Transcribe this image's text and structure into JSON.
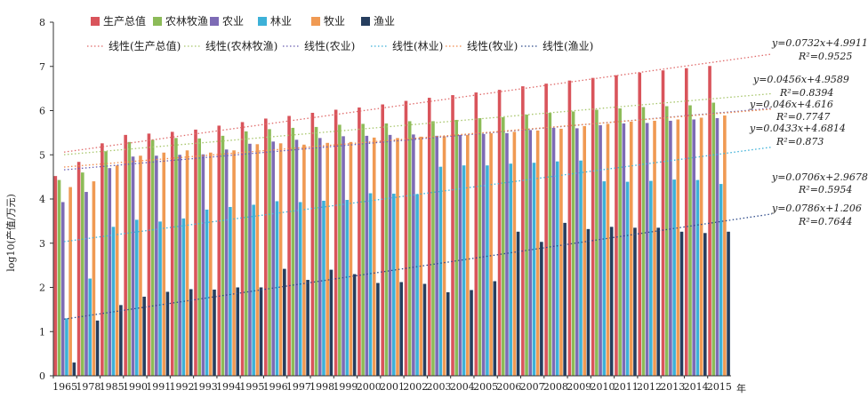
{
  "chart_data": {
    "type": "bar",
    "ylabel": "log10(产值/万元)",
    "xlabel": "年",
    "ylim": [
      0,
      8
    ],
    "yticks": [
      "0",
      "1",
      "2",
      "3",
      "4",
      "5",
      "6",
      "7",
      "8"
    ],
    "categories": [
      "1965",
      "1978",
      "1985",
      "1990",
      "1991",
      "1992",
      "1993",
      "1994",
      "1995",
      "1996",
      "1997",
      "1998",
      "1999",
      "2000",
      "2001",
      "2002",
      "2003",
      "2004",
      "2005",
      "2006",
      "2007",
      "2008",
      "2009",
      "2010",
      "2011",
      "2012",
      "2013",
      "2014",
      "2015"
    ],
    "legend_position": "top-left",
    "series": [
      {
        "name": "生产总值",
        "color": "#d9545b",
        "values": [
          4.52,
          4.84,
          5.26,
          5.45,
          5.48,
          5.52,
          5.57,
          5.66,
          5.74,
          5.82,
          5.88,
          5.95,
          6.02,
          6.07,
          6.14,
          6.22,
          6.29,
          6.35,
          6.41,
          6.47,
          6.55,
          6.61,
          6.68,
          6.74,
          6.8,
          6.86,
          6.91,
          6.96,
          7.01
        ]
      },
      {
        "name": "农林牧渔",
        "color": "#8cbb58",
        "values": [
          4.43,
          4.6,
          5.08,
          5.29,
          5.34,
          5.38,
          5.37,
          5.43,
          5.53,
          5.58,
          5.61,
          5.63,
          5.68,
          5.7,
          5.71,
          5.76,
          5.76,
          5.79,
          5.83,
          5.85,
          5.91,
          5.95,
          5.98,
          6.02,
          6.05,
          6.08,
          6.1,
          6.12,
          6.18
        ]
      },
      {
        "name": "农业",
        "color": "#7d6bb5",
        "values": [
          3.93,
          4.16,
          4.7,
          4.96,
          4.98,
          5.0,
          5.01,
          5.12,
          5.25,
          5.3,
          5.34,
          5.38,
          5.42,
          5.43,
          5.45,
          5.46,
          5.43,
          5.45,
          5.47,
          5.49,
          5.56,
          5.61,
          5.6,
          5.67,
          5.71,
          5.72,
          5.77,
          5.8,
          5.83
        ]
      },
      {
        "name": "林业",
        "color": "#3db1d8",
        "values": [
          1.3,
          2.2,
          3.37,
          3.53,
          3.49,
          3.56,
          3.76,
          3.82,
          3.87,
          3.95,
          3.93,
          3.96,
          3.98,
          4.13,
          4.12,
          4.11,
          4.73,
          4.76,
          4.76,
          4.8,
          4.82,
          4.85,
          4.87,
          4.4,
          4.39,
          4.41,
          4.44,
          4.43,
          4.34
        ]
      },
      {
        "name": "牧业",
        "color": "#f09a53",
        "values": [
          4.27,
          4.4,
          4.76,
          4.98,
          5.05,
          5.1,
          5.05,
          5.1,
          5.24,
          5.26,
          5.23,
          5.27,
          5.29,
          5.39,
          5.38,
          5.41,
          5.42,
          5.45,
          5.49,
          5.52,
          5.55,
          5.59,
          5.65,
          5.7,
          5.75,
          5.77,
          5.8,
          5.84,
          5.89
        ]
      },
      {
        "name": "渔业",
        "color": "#263e5e",
        "values": [
          0.3,
          1.25,
          1.6,
          1.79,
          1.9,
          1.96,
          1.95,
          2.0,
          2.0,
          2.42,
          2.17,
          2.4,
          2.3,
          2.1,
          2.12,
          2.08,
          1.89,
          1.94,
          2.14,
          3.26,
          3.03,
          3.46,
          3.32,
          3.37,
          3.35,
          3.35,
          3.26,
          3.23,
          3.26
        ]
      }
    ],
    "trendlines": [
      {
        "name": "线性(生产总值)",
        "color": "#e06b6b",
        "slope": 0.0732,
        "intercept": 4.9911,
        "equation": "y=0.0732x+4.9911",
        "r2": "R²=0.9525"
      },
      {
        "name": "线性(农林牧渔)",
        "color": "#a7c66b",
        "slope": 0.0456,
        "intercept": 4.9589,
        "equation": "y=0.0456x+4.9589",
        "r2": "R²=0.8394"
      },
      {
        "name": "线性(农业)",
        "color": "#6a5db0",
        "slope": 0.046,
        "intercept": 4.616,
        "equation": "y=0.046x+4.616",
        "r2": "R²=0.7747"
      },
      {
        "name": "线性(林业)",
        "color": "#3db1d8",
        "slope": 0.0706,
        "intercept": 2.9678,
        "equation": "y=0.0706x+2.9678",
        "r2": "R²=0.5954"
      },
      {
        "name": "线性(牧业)",
        "color": "#f08a4b",
        "slope": 0.0433,
        "intercept": 4.6814,
        "equation": "y=0.0433x+4.6814",
        "r2": "R²=0.873"
      },
      {
        "name": "线性(渔业)",
        "color": "#2d4a8a",
        "slope": 0.0786,
        "intercept": 1.206,
        "equation": "y=0.0786x+1.206",
        "r2": "R²=0.7644"
      }
    ]
  }
}
